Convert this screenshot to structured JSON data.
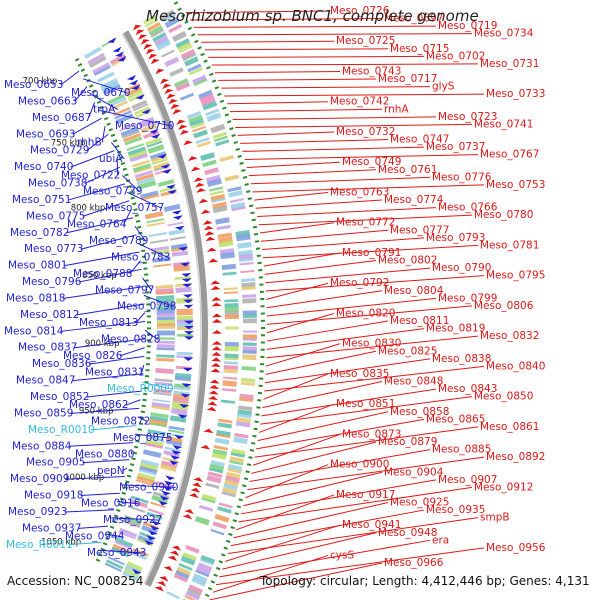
{
  "title": "Mesorhizobium sp. BNC1, complete genome",
  "accession": "Accession: NC_008254",
  "summary": "Topology: circular; Length: 4,412,446 bp; Genes: 4,131",
  "colors": {
    "forward": "#1f1fd6",
    "reverse": "#e01818",
    "rna": "#33bbe0",
    "backbone": "#9a9a9a",
    "tick": "#2c8a2c"
  },
  "ticks": [
    "700 kbp",
    "750 kbp",
    "800 kbp",
    "850 kbp",
    "900 kbp",
    "950 kbp",
    "1000 kbp",
    "1050 kbp"
  ],
  "left_labels": [
    {
      "text": "Meso_0653",
      "type": "gene"
    },
    {
      "text": "Meso_0670",
      "type": "gene"
    },
    {
      "text": "Meso_0663",
      "type": "gene"
    },
    {
      "text": "trpA",
      "type": "gene"
    },
    {
      "text": "Meso_0687",
      "type": "gene"
    },
    {
      "text": "Meso_0710",
      "type": "gene"
    },
    {
      "text": "Meso_0693",
      "type": "gene"
    },
    {
      "text": "rhhB",
      "type": "gene"
    },
    {
      "text": "Meso_0729",
      "type": "gene"
    },
    {
      "text": "ubiA",
      "type": "gene"
    },
    {
      "text": "Meso_0740",
      "type": "gene"
    },
    {
      "text": "Meso_0722",
      "type": "gene"
    },
    {
      "text": "Meso_0738",
      "type": "gene"
    },
    {
      "text": "Meso_0739",
      "type": "gene"
    },
    {
      "text": "Meso_0751",
      "type": "gene"
    },
    {
      "text": "Meso_0757",
      "type": "gene"
    },
    {
      "text": "Meso_0775",
      "type": "gene"
    },
    {
      "text": "Meso_0764",
      "type": "gene"
    },
    {
      "text": "Meso_0782",
      "type": "gene"
    },
    {
      "text": "Meso_0789",
      "type": "gene"
    },
    {
      "text": "Meso_0773",
      "type": "gene"
    },
    {
      "text": "Meso_0783",
      "type": "gene"
    },
    {
      "text": "Meso_0801",
      "type": "gene"
    },
    {
      "text": "Meso_0788",
      "type": "gene"
    },
    {
      "text": "Meso_0796",
      "type": "gene"
    },
    {
      "text": "Meso_0797",
      "type": "gene"
    },
    {
      "text": "Meso_0818",
      "type": "gene"
    },
    {
      "text": "Meso_0798",
      "type": "gene"
    },
    {
      "text": "Meso_0812",
      "type": "gene"
    },
    {
      "text": "Meso_0813",
      "type": "gene"
    },
    {
      "text": "Meso_0814",
      "type": "gene"
    },
    {
      "text": "Meso_0828",
      "type": "gene"
    },
    {
      "text": "Meso_0837",
      "type": "gene"
    },
    {
      "text": "Meso_0826",
      "type": "gene"
    },
    {
      "text": "Meso_0836",
      "type": "gene"
    },
    {
      "text": "Meso_0831",
      "type": "gene"
    },
    {
      "text": "Meso_0847",
      "type": "gene"
    },
    {
      "text": "Meso_R0009",
      "type": "rna"
    },
    {
      "text": "Meso_0852",
      "type": "gene"
    },
    {
      "text": "Meso_0862",
      "type": "gene"
    },
    {
      "text": "Meso_0859",
      "type": "gene"
    },
    {
      "text": "Meso_0872",
      "type": "gene"
    },
    {
      "text": "Meso_R0010",
      "type": "rna"
    },
    {
      "text": "Meso_0875",
      "type": "gene"
    },
    {
      "text": "Meso_0884",
      "type": "gene"
    },
    {
      "text": "Meso_0880",
      "type": "gene"
    },
    {
      "text": "Meso_0905",
      "type": "gene"
    },
    {
      "text": "pepN",
      "type": "gene"
    },
    {
      "text": "Meso_0909",
      "type": "gene"
    },
    {
      "text": "Meso_0910",
      "type": "gene"
    },
    {
      "text": "Meso_0918",
      "type": "gene"
    },
    {
      "text": "Meso_0916",
      "type": "gene"
    },
    {
      "text": "Meso_0923",
      "type": "gene"
    },
    {
      "text": "Meso_0927",
      "type": "gene"
    },
    {
      "text": "Meso_0937",
      "type": "gene"
    },
    {
      "text": "Meso_0944",
      "type": "gene"
    },
    {
      "text": "Meso_R0011",
      "type": "rna"
    },
    {
      "text": "Meso_0943",
      "type": "gene"
    }
  ],
  "right_labels": [
    "Meso_0726",
    "Meso_0697",
    "Meso_0719",
    "Meso_0734",
    "Meso_0725",
    "Meso_0715",
    "Meso_0702",
    "Meso_0731",
    "Meso_0743",
    "Meso_0717",
    "glyS",
    "Meso_0733",
    "Meso_0742",
    "rnhA",
    "Meso_0723",
    "Meso_0741",
    "Meso_0732",
    "Meso_0747",
    "Meso_0737",
    "Meso_0767",
    "Meso_0749",
    "Meso_0761",
    "Meso_0776",
    "Meso_0753",
    "Meso_0763",
    "Meso_0774",
    "Meso_0766",
    "Meso_0780",
    "Meso_0772",
    "Meso_0777",
    "Meso_0793",
    "Meso_0781",
    "Meso_0791",
    "Meso_0802",
    "Meso_0790",
    "Meso_0795",
    "Meso_0792",
    "Meso_0804",
    "Meso_0799",
    "Meso_0806",
    "Meso_0820",
    "Meso_0811",
    "Meso_0819",
    "Meso_0832",
    "Meso_0830",
    "Meso_0825",
    "Meso_0838",
    "Meso_0840",
    "Meso_0835",
    "Meso_0848",
    "Meso_0843",
    "Meso_0850",
    "Meso_0851",
    "Meso_0858",
    "Meso_0865",
    "Meso_0861",
    "Meso_0873",
    "Meso_0879",
    "Meso_0885",
    "Meso_0892",
    "Meso_0900",
    "Meso_0904",
    "Meso_0907",
    "Meso_0912",
    "Meso_0917",
    "Meso_0925",
    "Meso_0935",
    "smpB",
    "Meso_0941",
    "Meso_0948",
    "era",
    "Meso_0956",
    "cysS",
    "Meso_0966"
  ]
}
